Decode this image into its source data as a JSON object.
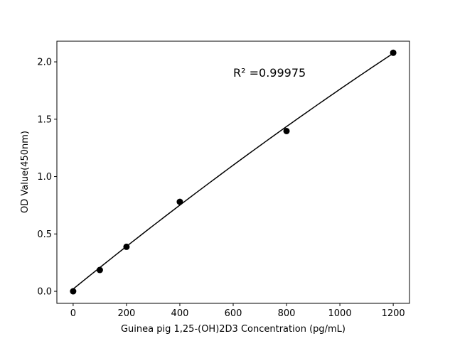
{
  "chart_data": {
    "type": "scatter",
    "title": "",
    "xlabel": "Guinea pig 1,25-(OH)2D3 Concentration (pg/mL)",
    "ylabel": "OD Value(450nm)",
    "xlim": [
      -61,
      1261
    ],
    "ylim": [
      -0.105,
      2.18
    ],
    "x_ticks": [
      0,
      200,
      400,
      600,
      800,
      1000,
      1200
    ],
    "x_tick_labels": [
      "0",
      "200",
      "400",
      "600",
      "800",
      "1000",
      "1200"
    ],
    "y_ticks": [
      0.0,
      0.5,
      1.0,
      1.5,
      2.0
    ],
    "y_tick_labels": [
      "0.0",
      "0.5",
      "1.0",
      "1.5",
      "2.0"
    ],
    "grid": false,
    "series": [
      {
        "x": [
          0,
          100,
          200,
          400,
          800,
          1200
        ],
        "y": [
          0.0,
          0.186,
          0.388,
          0.78,
          1.397,
          2.079
        ],
        "color": "#000000",
        "marker": "circle"
      }
    ],
    "fit": {
      "type": "quadratic",
      "coefficients": [
        0.02,
        0.001885,
        -1.44e-07
      ],
      "x_range": [
        0,
        1200
      ],
      "color": "#000000"
    },
    "annotations": [
      {
        "text": "R² =0.99975",
        "x": 600,
        "y": 1.87
      }
    ]
  }
}
